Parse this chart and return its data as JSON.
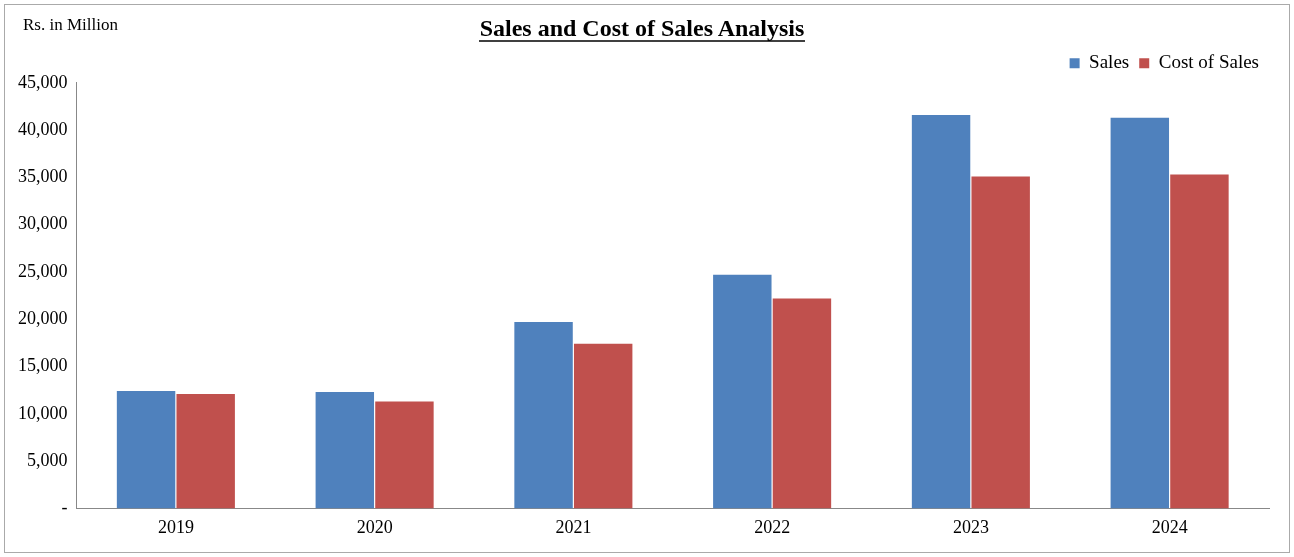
{
  "chart_data": {
    "type": "bar",
    "title": "Sales and Cost of Sales Analysis",
    "ylabel": "Rs. in Million",
    "categories": [
      "2019",
      "2020",
      "2021",
      "2022",
      "2023",
      "2024"
    ],
    "series": [
      {
        "name": "Sales",
        "color": "#4f81bd",
        "values": [
          12400,
          12300,
          19700,
          24700,
          41600,
          41300
        ]
      },
      {
        "name": "Cost of Sales",
        "color": "#c0504d",
        "values": [
          12100,
          11300,
          17400,
          22200,
          35100,
          35300
        ]
      }
    ],
    "ylim": [
      0,
      45000
    ],
    "yticks": [
      {
        "value": 0,
        "label": "-"
      },
      {
        "value": 5000,
        "label": "5,000"
      },
      {
        "value": 10000,
        "label": "10,000"
      },
      {
        "value": 15000,
        "label": "15,000"
      },
      {
        "value": 20000,
        "label": "20,000"
      },
      {
        "value": 25000,
        "label": "25,000"
      },
      {
        "value": 30000,
        "label": "30,000"
      },
      {
        "value": 35000,
        "label": "35,000"
      },
      {
        "value": 40000,
        "label": "40,000"
      },
      {
        "value": 45000,
        "label": "45,000"
      }
    ],
    "grid": false,
    "legend": "top right"
  }
}
